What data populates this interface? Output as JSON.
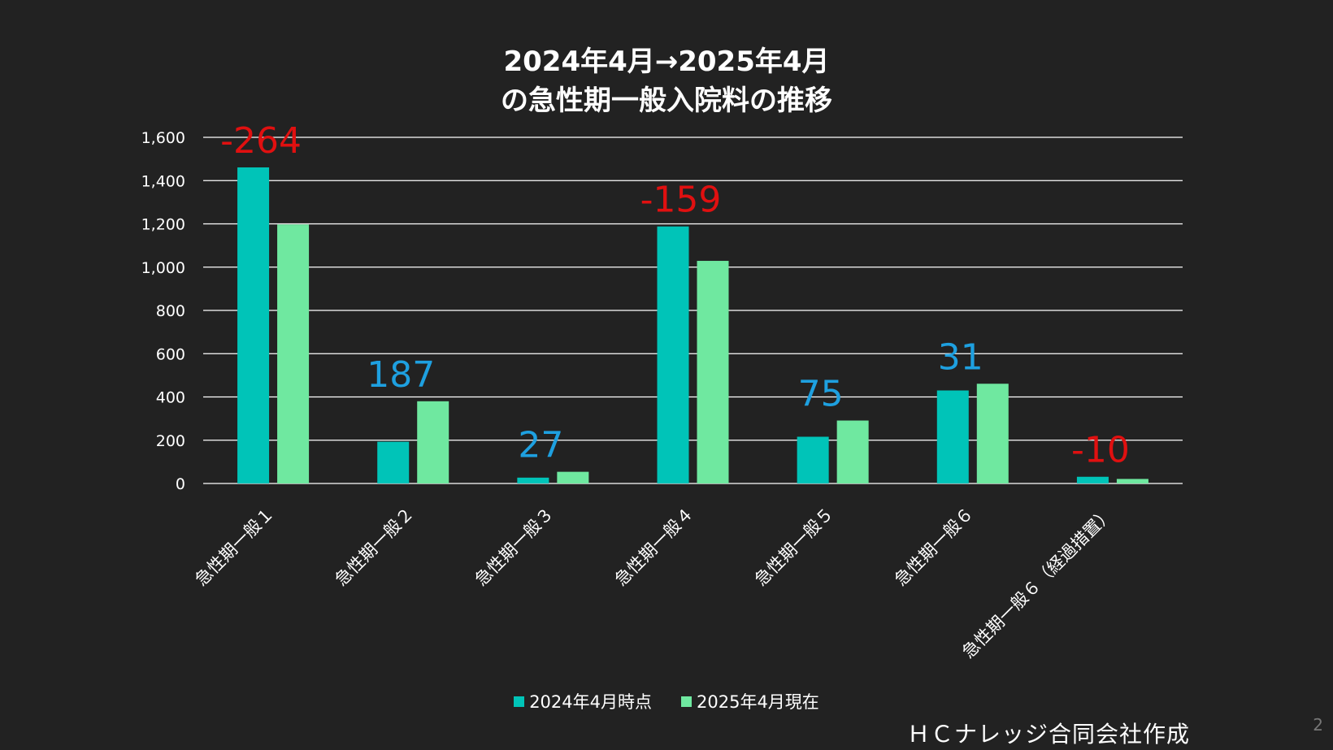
{
  "title": {
    "line1": "2024年4月→2025年4月",
    "line2": "の急性期一般入院料の推移"
  },
  "chart_data": {
    "type": "bar",
    "categories": [
      "急性期一般１",
      "急性期一般２",
      "急性期一般３",
      "急性期一般４",
      "急性期一般５",
      "急性期一般６",
      "急性期一般６（経過措置）"
    ],
    "series": [
      {
        "name": "2024年4月時点",
        "color": "#00c4b8",
        "values": [
          1461,
          193,
          27,
          1188,
          216,
          430,
          31
        ]
      },
      {
        "name": "2025年4月現在",
        "color": "#6fe8a0",
        "values": [
          1197,
          380,
          54,
          1029,
          291,
          461,
          21
        ]
      }
    ],
    "annotations": [
      "-264",
      "187",
      "27",
      "-159",
      "75",
      "31",
      "-10"
    ],
    "annotation_colors": [
      "#e01010",
      "#1ea0e0",
      "#1ea0e0",
      "#e01010",
      "#1ea0e0",
      "#1ea0e0",
      "#e01010"
    ],
    "yticks": [
      "0",
      "200",
      "400",
      "600",
      "800",
      "1,000",
      "1,200",
      "1,400",
      "1,600"
    ],
    "ylim": [
      0,
      1600
    ],
    "grid": true,
    "legend_position": "bottom"
  },
  "credit": "ＨＣナレッジ合同会社作成",
  "page_number": "2"
}
